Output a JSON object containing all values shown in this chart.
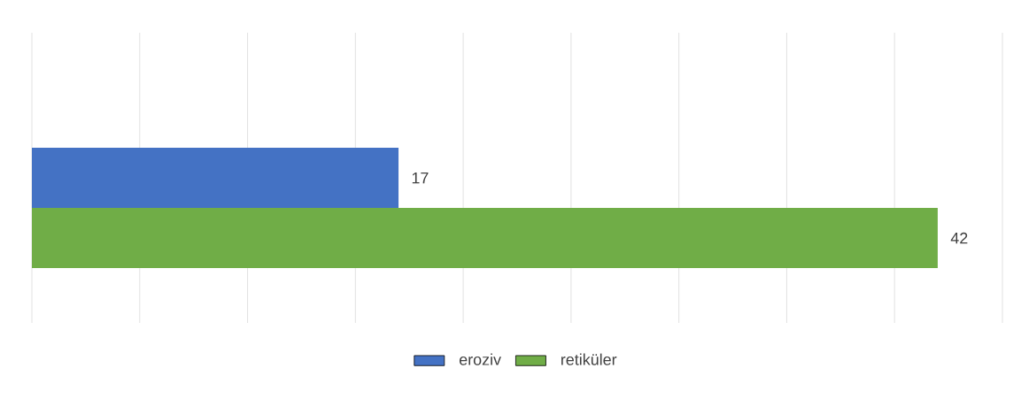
{
  "chart_data": {
    "type": "bar",
    "orientation": "horizontal",
    "categories": [
      null
    ],
    "series": [
      {
        "name": "eroziv",
        "color": "#4472c4",
        "values": [
          17
        ],
        "value_labels": [
          "17"
        ]
      },
      {
        "name": "retiküler",
        "color": "#70ad47",
        "values": [
          42
        ],
        "value_labels": [
          "42"
        ]
      }
    ],
    "xlim": [
      0,
      45
    ],
    "xticks": [
      {
        "value": 0,
        "label": null
      },
      {
        "value": 5,
        "label": null
      },
      {
        "value": 10,
        "label": null
      },
      {
        "value": 15,
        "label": null
      },
      {
        "value": 20,
        "label": null
      },
      {
        "value": 25,
        "label": null
      },
      {
        "value": 30,
        "label": null
      },
      {
        "value": 35,
        "label": null
      },
      {
        "value": 40,
        "label": null
      },
      {
        "value": 45,
        "label": null
      }
    ],
    "grid": "x",
    "legend": "bottom"
  }
}
